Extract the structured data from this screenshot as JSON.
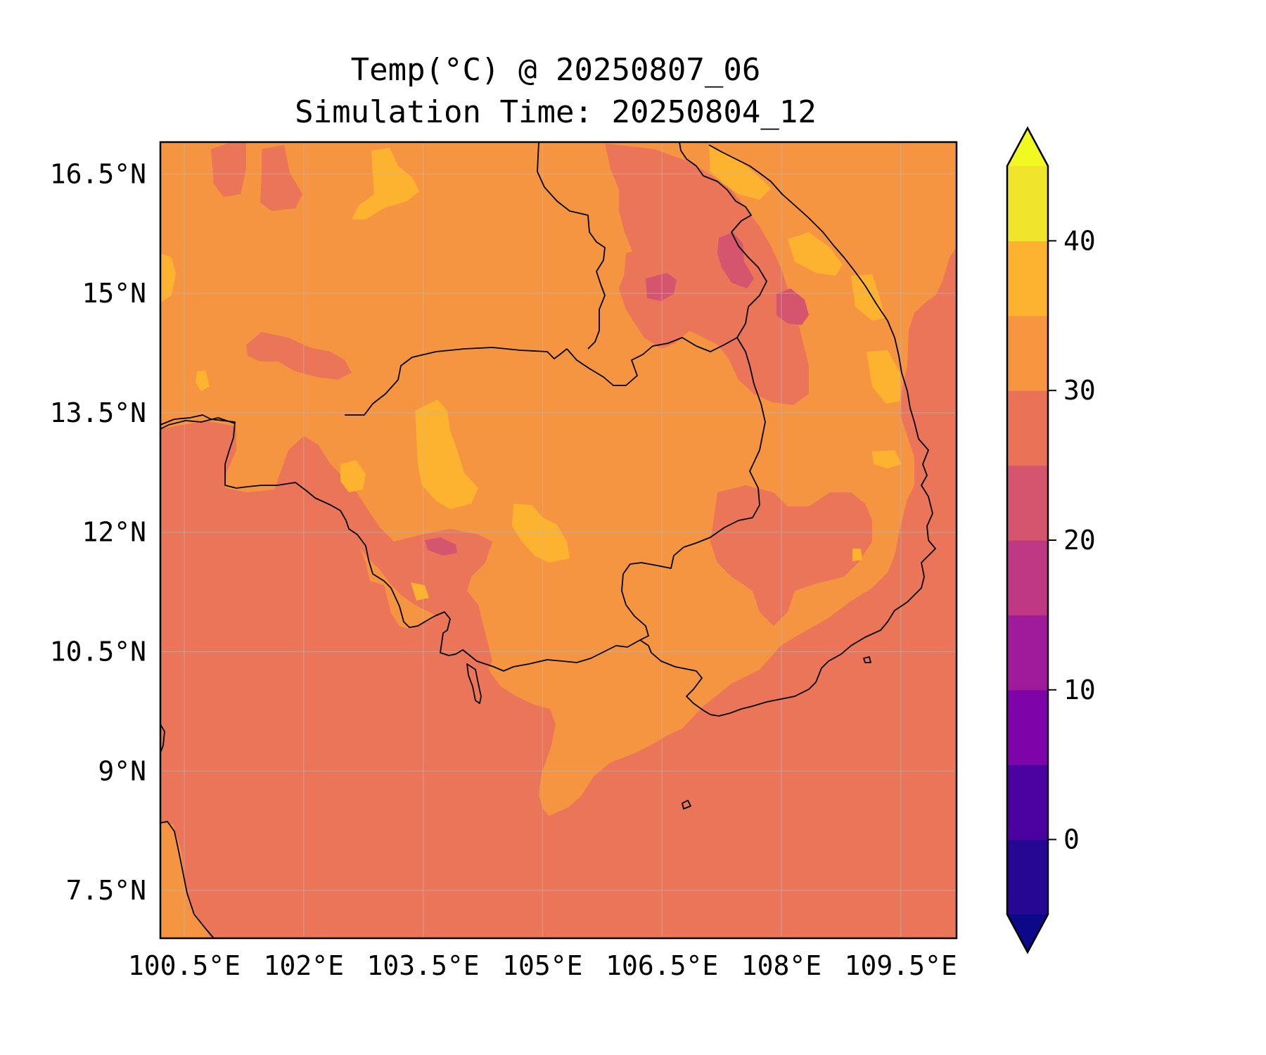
{
  "title": "Temp(°C) @ 20250807_06",
  "subtitle": "Simulation Time: 20250804_12",
  "map": {
    "lon_range": [
      100.2,
      110.2
    ],
    "lat_range": [
      6.9,
      16.9
    ],
    "lon_ticks": [
      "100.5°E",
      "102°E",
      "103.5°E",
      "105°E",
      "106.5°E",
      "108°E",
      "109.5°E"
    ],
    "lat_ticks": [
      "16.5°N",
      "15°N",
      "13.5°N",
      "12°N",
      "10.5°N",
      "9°N",
      "7.5°N"
    ],
    "lon_tick_values": [
      100.5,
      102,
      103.5,
      105,
      106.5,
      108,
      109.5
    ],
    "lat_tick_values": [
      16.5,
      15,
      13.5,
      12,
      10.5,
      9,
      7.5
    ],
    "grid": true,
    "base_color": "#f59541",
    "sea_color": "#ea7558",
    "coastline_color": "#000000"
  },
  "colorbar": {
    "levels": [
      -5,
      0,
      5,
      10,
      15,
      20,
      25,
      30,
      35,
      40,
      45
    ],
    "colors": [
      "#250793",
      "#4c02a1",
      "#7e03a8",
      "#a01a9c",
      "#be3883",
      "#d5546e",
      "#e97257",
      "#f89540",
      "#fdb32f",
      "#f1e52b"
    ],
    "under_color": "#0d0887",
    "over_color": "#f0f921",
    "tick_values": [
      0,
      10,
      20,
      30,
      40
    ],
    "tick_labels": [
      "0",
      "10",
      "20",
      "30",
      "40"
    ],
    "extend": "both"
  }
}
